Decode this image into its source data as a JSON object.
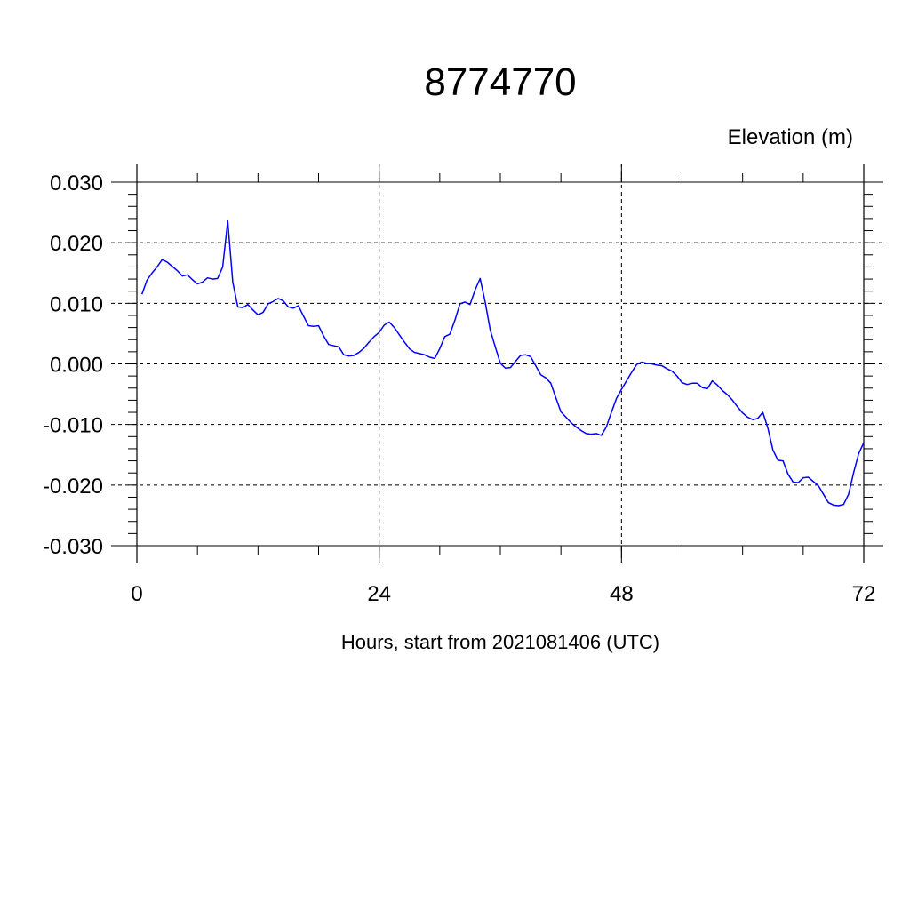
{
  "chart_data": {
    "type": "line",
    "title": "8774770",
    "units_label": "Elevation (m)",
    "xlabel": "Hours, start from 2021081406 (UTC)",
    "xlim": [
      0,
      72
    ],
    "ylim": [
      -0.03,
      0.03
    ],
    "x_ticks": [
      0,
      24,
      48,
      72
    ],
    "x_tick_labels": [
      "0",
      "24",
      "48",
      "72"
    ],
    "y_ticks": [
      0.03,
      0.02,
      0.01,
      0.0,
      -0.01,
      -0.02,
      -0.03
    ],
    "y_tick_labels": [
      "0.030",
      "0.020",
      "0.010",
      "0.000",
      "-0.010",
      "-0.020",
      "-0.030"
    ],
    "grid": true,
    "line_color": "#0000ff",
    "series": [
      {
        "x": [
          0.5,
          1.0,
          1.5,
          2.0,
          2.5,
          3.0,
          3.5,
          4.0,
          4.5,
          5.0,
          5.5,
          6.0,
          6.5,
          7.0,
          7.5,
          8.0,
          8.5,
          9.0,
          9.5,
          10.0,
          10.5,
          11.0,
          11.5,
          12.0,
          12.5,
          13.0,
          13.5,
          14.0,
          14.5,
          15.0,
          15.5,
          16.0,
          16.5,
          17.0,
          17.5,
          18.0,
          18.5,
          19.0,
          19.5,
          20.0,
          20.5,
          21.0,
          21.5,
          22.0,
          22.5,
          23.0,
          23.5,
          24.0,
          24.5,
          25.0,
          25.5,
          26.0,
          26.5,
          27.0,
          27.5,
          28.0,
          28.5,
          29.0,
          29.5,
          30.0,
          30.5,
          31.0,
          31.5,
          32.0,
          32.5,
          33.0,
          33.5,
          34.0,
          34.5,
          35.0,
          35.5,
          36.0,
          36.5,
          37.0,
          37.5,
          38.0,
          38.5,
          39.0,
          39.5,
          40.0,
          40.5,
          41.0,
          41.5,
          42.0,
          42.5,
          43.0,
          43.5,
          44.0,
          44.5,
          45.0,
          45.5,
          46.0,
          46.5,
          47.0,
          47.5,
          48.0,
          48.5,
          49.0,
          49.5,
          50.0,
          50.5,
          51.0,
          51.5,
          52.0,
          52.5,
          53.0,
          53.5,
          54.0,
          54.5,
          55.0,
          55.5,
          56.0,
          56.5,
          57.0,
          57.5,
          58.0,
          58.5,
          59.0,
          59.5,
          60.0,
          60.5,
          61.0,
          61.5,
          62.0,
          62.5,
          63.0,
          63.5,
          64.0,
          64.5,
          65.0,
          65.5,
          66.0,
          66.5,
          67.0,
          67.5,
          68.0,
          68.5,
          69.0,
          69.5,
          70.0,
          70.5,
          71.0,
          71.5,
          72.0
        ],
        "y": [
          0.0115,
          0.0138,
          0.015,
          0.016,
          0.0172,
          0.0168,
          0.0161,
          0.0154,
          0.0145,
          0.0147,
          0.0139,
          0.0132,
          0.0135,
          0.0142,
          0.014,
          0.0141,
          0.016,
          0.0236,
          0.0135,
          0.0094,
          0.0093,
          0.0098,
          0.0089,
          0.0081,
          0.0085,
          0.0099,
          0.0103,
          0.0108,
          0.0104,
          0.0094,
          0.0092,
          0.0096,
          0.0079,
          0.0063,
          0.0062,
          0.0063,
          0.0046,
          0.0032,
          0.003,
          0.0028,
          0.0015,
          0.0013,
          0.0014,
          0.0019,
          0.0026,
          0.0036,
          0.0045,
          0.0052,
          0.0064,
          0.0069,
          0.006,
          0.0048,
          0.0036,
          0.0025,
          0.0019,
          0.0017,
          0.0015,
          0.0011,
          0.0009,
          0.0025,
          0.0045,
          0.0049,
          0.0072,
          0.0099,
          0.0102,
          0.0098,
          0.0122,
          0.0141,
          0.0102,
          0.0056,
          0.0028,
          0.0001,
          -0.0007,
          -0.0006,
          0.0004,
          0.0014,
          0.0015,
          0.0012,
          -0.0003,
          -0.0018,
          -0.0023,
          -0.0032,
          -0.0056,
          -0.0079,
          -0.0088,
          -0.0097,
          -0.0104,
          -0.011,
          -0.0115,
          -0.0116,
          -0.0115,
          -0.0118,
          -0.0104,
          -0.008,
          -0.0057,
          -0.0042,
          -0.0028,
          -0.0014,
          -0.0001,
          0.0003,
          0.0001,
          0.0,
          -0.0002,
          -0.0003,
          -0.0008,
          -0.0012,
          -0.002,
          -0.0031,
          -0.0034,
          -0.0032,
          -0.0032,
          -0.0039,
          -0.0041,
          -0.0028,
          -0.0035,
          -0.0044,
          -0.0051,
          -0.006,
          -0.0071,
          -0.0081,
          -0.0088,
          -0.0092,
          -0.009,
          -0.008,
          -0.0106,
          -0.0142,
          -0.0159,
          -0.016,
          -0.0182,
          -0.0195,
          -0.0196,
          -0.0188,
          -0.0187,
          -0.0194,
          -0.0201,
          -0.0215,
          -0.0229,
          -0.0233,
          -0.0234,
          -0.0232,
          -0.0215,
          -0.0179,
          -0.0148,
          -0.013
        ]
      }
    ]
  }
}
